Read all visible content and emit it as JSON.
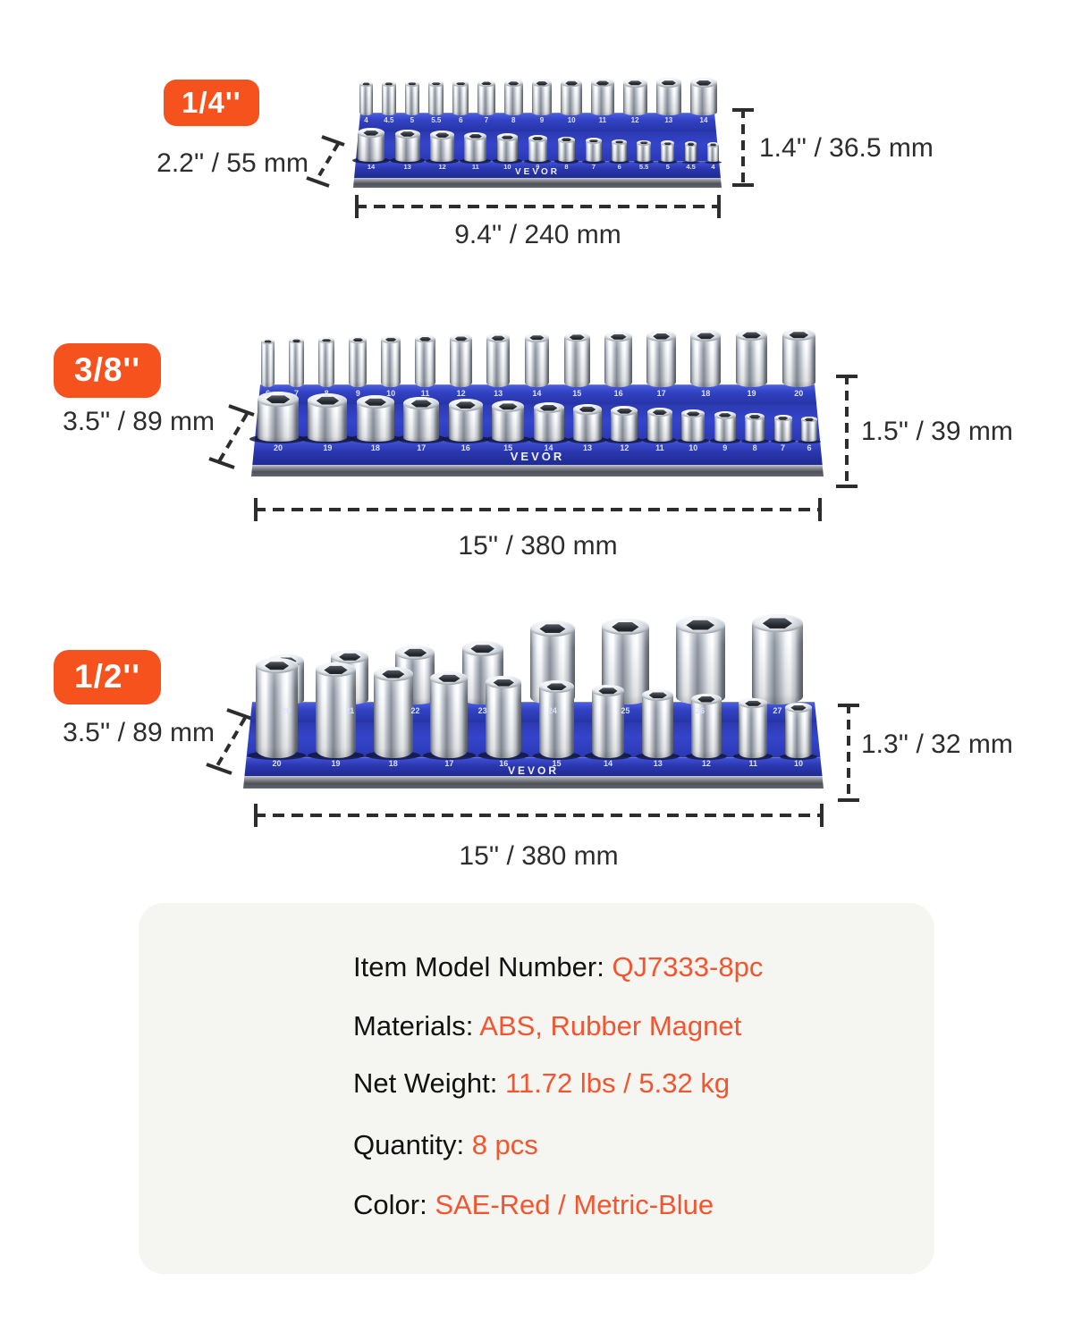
{
  "brand": "VEVOR",
  "colors": {
    "badge_orange": "#F5521E",
    "value_orange": "#F4542E",
    "tray_blue": "#2E3CBE",
    "tray_blue_dark": "#222E96",
    "base_gray": "#5A5D63",
    "dim_text": "#2D2D2D",
    "panel_bg": "#F5F5F2",
    "size_label_white": "#DBE2FF"
  },
  "trays": [
    {
      "badge": "1/4''",
      "depth": "2.2'' / 55 mm",
      "height": "1.4'' / 36.5 mm",
      "width": "9.4'' / 240 mm",
      "back_sizes": [
        "4",
        "4.5",
        "5",
        "5.5",
        "6",
        "7",
        "8",
        "9",
        "10",
        "11",
        "12",
        "13",
        "14"
      ],
      "front_sizes": [
        "14",
        "13",
        "12",
        "11",
        "10",
        "9",
        "8",
        "7",
        "6",
        "5.5",
        "5",
        "4.5",
        "4"
      ]
    },
    {
      "badge": "3/8''",
      "depth": "3.5'' / 89 mm",
      "height": "1.5'' / 39 mm",
      "width": "15'' / 380 mm",
      "back_sizes": [
        "6",
        "7",
        "8",
        "9",
        "10",
        "11",
        "12",
        "13",
        "14",
        "15",
        "16",
        "17",
        "18",
        "19",
        "20"
      ],
      "front_sizes": [
        "20",
        "19",
        "18",
        "17",
        "16",
        "15",
        "14",
        "13",
        "12",
        "11",
        "10",
        "9",
        "8",
        "7",
        "6"
      ]
    },
    {
      "badge": "1/2''",
      "depth": "3.5'' / 89 mm",
      "height": "1.3'' / 32 mm",
      "width": "15'' / 380 mm",
      "back_sizes": [
        "20",
        "21",
        "22",
        "23",
        "24",
        "25",
        "26",
        "27"
      ],
      "front_sizes": [
        "20",
        "19",
        "18",
        "17",
        "16",
        "15",
        "14",
        "13",
        "12",
        "11",
        "10"
      ]
    }
  ],
  "specs": {
    "rows": [
      {
        "label": "Item Model Number: ",
        "value": "QJ7333-8pc"
      },
      {
        "label": "Materials: ",
        "value": "ABS, Rubber Magnet"
      },
      {
        "label": "Net Weight: ",
        "value": "11.72 lbs / 5.32 kg"
      },
      {
        "label": "Quantity: ",
        "value": "8 pcs"
      },
      {
        "label": "Color: ",
        "value": "SAE-Red / Metric-Blue"
      }
    ]
  }
}
